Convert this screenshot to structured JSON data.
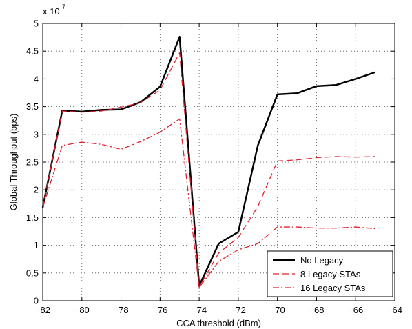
{
  "chart_data": {
    "type": "line",
    "xlabel": "CCA threshold (dBm)",
    "ylabel": "Global Throughput (bps)",
    "y_multiplier_label": "x 10",
    "y_multiplier_exp": "7",
    "xlim": [
      -82,
      -64
    ],
    "ylim": [
      0,
      5
    ],
    "grid": true,
    "legend_position": "bottom-right",
    "x_ticks": [
      -82,
      -80,
      -78,
      -76,
      -74,
      -72,
      -70,
      -68,
      -66,
      -64
    ],
    "x_tick_labels": [
      "−82",
      "−80",
      "−78",
      "−76",
      "−74",
      "−72",
      "−70",
      "−68",
      "−66",
      "−64"
    ],
    "y_ticks": [
      0,
      0.5,
      1,
      1.5,
      2,
      2.5,
      3,
      3.5,
      4,
      4.5,
      5
    ],
    "y_tick_labels": [
      "0",
      "0.5",
      "1",
      "1.5",
      "2",
      "2.5",
      "3",
      "3.5",
      "4",
      "4.5",
      "5"
    ],
    "series": [
      {
        "name": "No Legacy",
        "color": "#000000",
        "style": "solid",
        "x": [
          -82,
          -81,
          -80,
          -79,
          -78,
          -77,
          -76,
          -75,
          -74,
          -73,
          -72,
          -71,
          -70,
          -69,
          -68,
          -67,
          -66,
          -65
        ],
        "y": [
          1.68,
          3.43,
          3.41,
          3.44,
          3.45,
          3.58,
          3.86,
          4.76,
          0.27,
          1.03,
          1.24,
          2.8,
          3.72,
          3.74,
          3.87,
          3.89,
          4.0,
          4.12
        ]
      },
      {
        "name": "8 Legacy STAs",
        "color": "#e0202e",
        "style": "dashed",
        "x": [
          -82,
          -81,
          -80,
          -79,
          -78,
          -77,
          -76,
          -75,
          -74,
          -73,
          -72,
          -71,
          -70,
          -69,
          -68,
          -67,
          -66,
          -65
        ],
        "y": [
          1.68,
          3.42,
          3.4,
          3.42,
          3.49,
          3.57,
          3.8,
          4.47,
          0.25,
          0.86,
          1.14,
          1.7,
          2.52,
          2.54,
          2.58,
          2.6,
          2.59,
          2.6
        ]
      },
      {
        "name": "16 Legacy STAs",
        "color": "#e0202e",
        "style": "dashdot",
        "x": [
          -82,
          -81,
          -80,
          -79,
          -78,
          -77,
          -76,
          -75,
          -74,
          -73,
          -72,
          -71,
          -70,
          -69,
          -68,
          -67,
          -66,
          -65
        ],
        "y": [
          1.68,
          2.8,
          2.86,
          2.82,
          2.73,
          2.87,
          3.04,
          3.28,
          0.24,
          0.71,
          0.92,
          1.03,
          1.33,
          1.33,
          1.31,
          1.31,
          1.33,
          1.3
        ]
      }
    ]
  }
}
